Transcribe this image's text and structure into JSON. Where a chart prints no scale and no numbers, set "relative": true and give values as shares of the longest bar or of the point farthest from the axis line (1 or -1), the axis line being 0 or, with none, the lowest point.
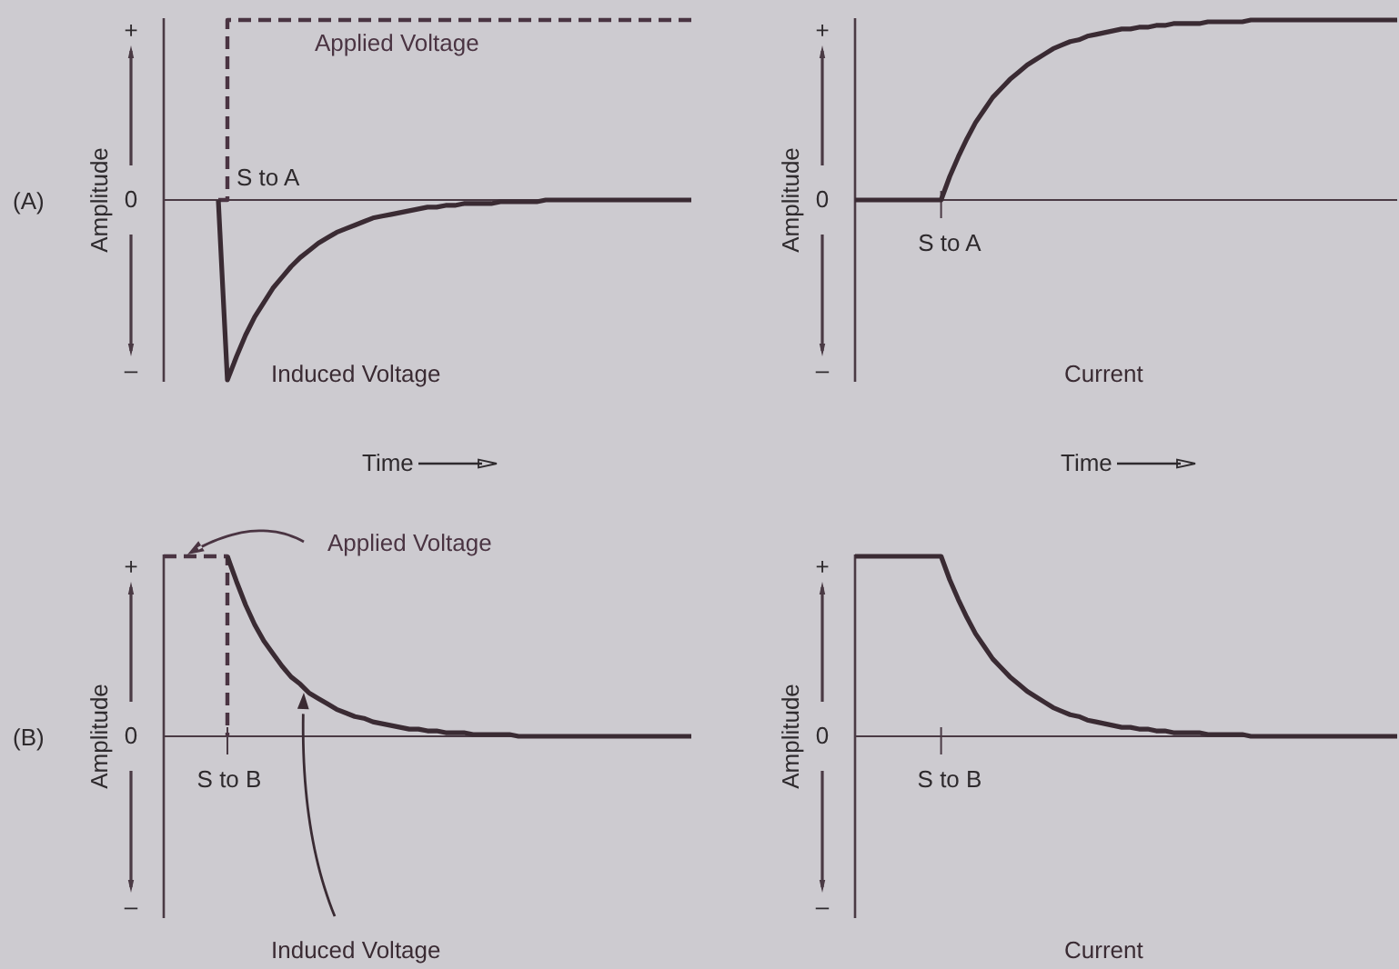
{
  "chart_data": [
    {
      "type": "line",
      "xlabel": "Time",
      "ylabel": "Amplitude",
      "relative": true,
      "annotations": [
        "(A)",
        "S to A",
        "+",
        "0",
        "–"
      ],
      "categories": [
        null,
        null,
        null,
        null,
        null,
        null,
        null,
        null,
        null,
        null,
        null,
        null,
        null,
        null,
        null,
        null,
        null,
        null,
        null,
        null,
        null,
        null,
        null,
        null,
        null,
        null,
        null,
        null,
        null,
        null,
        null,
        null,
        null,
        null,
        null,
        null,
        null,
        null,
        null,
        null,
        null,
        null,
        null,
        null,
        null,
        null,
        null,
        null,
        null,
        null,
        null,
        null,
        null,
        null,
        null,
        null,
        null,
        null,
        null
      ],
      "series": [
        {
          "name": "Applied Voltage",
          "type": "step",
          "line_style": "dashed",
          "color": "#4a3442",
          "values": [
            null,
            null,
            null,
            null,
            null,
            null,
            0,
            1,
            1,
            1,
            1,
            1,
            1,
            1,
            1,
            1,
            1,
            1,
            1,
            1,
            1,
            1,
            1,
            1,
            1,
            1,
            1,
            1,
            1,
            1,
            1,
            1,
            1,
            1,
            1,
            1,
            1,
            1,
            1,
            1,
            1,
            1,
            1,
            1,
            1,
            1,
            1,
            1,
            1,
            1,
            1,
            1,
            1,
            1,
            1,
            1,
            1,
            1,
            1
          ]
        },
        {
          "name": "Induced Voltage",
          "color": "#3a2b33",
          "values": [
            null,
            null,
            null,
            null,
            null,
            null,
            0,
            -1,
            -0.87,
            -0.75,
            -0.65,
            -0.57,
            -0.49,
            -0.43,
            -0.37,
            -0.32,
            -0.28,
            -0.24,
            -0.21,
            -0.18,
            -0.16,
            -0.14,
            -0.12,
            -0.1,
            -0.09,
            -0.08,
            -0.07,
            -0.06,
            -0.05,
            -0.04,
            -0.04,
            -0.03,
            -0.03,
            -0.02,
            -0.02,
            -0.02,
            -0.02,
            -0.01,
            -0.01,
            -0.01,
            -0.01,
            -0.01,
            0,
            0,
            0,
            0,
            0,
            0,
            0,
            0,
            0,
            0,
            0,
            0,
            0,
            0,
            0,
            0,
            0
          ]
        }
      ]
    },
    {
      "type": "line",
      "xlabel": "Time",
      "ylabel": "Amplitude",
      "relative": true,
      "annotations": [
        "S to A",
        "+",
        "0",
        "–"
      ],
      "categories": [
        null,
        null,
        null,
        null,
        null,
        null,
        null,
        null,
        null,
        null,
        null,
        null,
        null,
        null,
        null,
        null,
        null,
        null,
        null,
        null,
        null,
        null,
        null,
        null,
        null,
        null,
        null,
        null,
        null,
        null,
        null,
        null,
        null,
        null,
        null,
        null,
        null,
        null,
        null,
        null,
        null,
        null,
        null,
        null,
        null,
        null,
        null,
        null,
        null,
        null,
        null,
        null,
        null,
        null,
        null,
        null,
        null,
        null,
        null,
        null,
        null,
        null,
        null,
        null
      ],
      "series": [
        {
          "name": "Current",
          "color": "#3a2b33",
          "values": [
            0,
            0,
            0,
            0,
            0,
            0,
            0,
            0,
            0,
            0,
            0,
            0.13,
            0.24,
            0.34,
            0.43,
            0.5,
            0.57,
            0.62,
            0.67,
            0.71,
            0.75,
            0.78,
            0.81,
            0.84,
            0.86,
            0.88,
            0.89,
            0.91,
            0.92,
            0.93,
            0.94,
            0.95,
            0.95,
            0.96,
            0.96,
            0.97,
            0.97,
            0.98,
            0.98,
            0.98,
            0.98,
            0.99,
            0.99,
            0.99,
            0.99,
            0.99,
            1,
            1,
            1,
            1,
            1,
            1,
            1,
            1,
            1,
            1,
            1,
            1,
            1,
            1,
            1,
            1,
            1,
            1
          ]
        }
      ]
    },
    {
      "type": "line",
      "ylabel": "Amplitude",
      "relative": true,
      "annotations": [
        "(B)",
        "S to B",
        "+",
        "0",
        "–"
      ],
      "categories": [
        null,
        null,
        null,
        null,
        null,
        null,
        null,
        null,
        null,
        null,
        null,
        null,
        null,
        null,
        null,
        null,
        null,
        null,
        null,
        null,
        null,
        null,
        null,
        null,
        null,
        null,
        null,
        null,
        null,
        null,
        null,
        null,
        null,
        null,
        null,
        null,
        null,
        null,
        null,
        null,
        null,
        null,
        null,
        null,
        null,
        null,
        null,
        null,
        null,
        null,
        null,
        null,
        null,
        null,
        null,
        null,
        null,
        null,
        null
      ],
      "series": [
        {
          "name": "Applied Voltage",
          "type": "step",
          "line_style": "dashed",
          "color": "#4a3442",
          "values": [
            1,
            1,
            1,
            1,
            1,
            1,
            1,
            0,
            null,
            null,
            null,
            null,
            null,
            null,
            null,
            null,
            null,
            null,
            null,
            null,
            null,
            null,
            null,
            null,
            null,
            null,
            null,
            null,
            null,
            null,
            null,
            null,
            null,
            null,
            null,
            null,
            null,
            null,
            null,
            null,
            null,
            null,
            null,
            null,
            null,
            null,
            null,
            null,
            null,
            null,
            null,
            null,
            null,
            null,
            null,
            null,
            null,
            null,
            null
          ]
        },
        {
          "name": "Induced Voltage",
          "color": "#3a2b33",
          "values": [
            null,
            null,
            null,
            null,
            null,
            null,
            null,
            1,
            0.86,
            0.73,
            0.62,
            0.53,
            0.46,
            0.39,
            0.33,
            0.29,
            0.24,
            0.21,
            0.18,
            0.15,
            0.13,
            0.11,
            0.1,
            0.08,
            0.07,
            0.06,
            0.05,
            0.04,
            0.04,
            0.03,
            0.03,
            0.02,
            0.02,
            0.02,
            0.01,
            0.01,
            0.01,
            0.01,
            0.01,
            0,
            0,
            0,
            0,
            0,
            0,
            0,
            0,
            0,
            0,
            0,
            0,
            0,
            0,
            0,
            0,
            0,
            0,
            0,
            0
          ]
        }
      ]
    },
    {
      "type": "line",
      "ylabel": "Amplitude",
      "relative": true,
      "annotations": [
        "S to B",
        "+",
        "0",
        "–"
      ],
      "categories": [
        null,
        null,
        null,
        null,
        null,
        null,
        null,
        null,
        null,
        null,
        null,
        null,
        null,
        null,
        null,
        null,
        null,
        null,
        null,
        null,
        null,
        null,
        null,
        null,
        null,
        null,
        null,
        null,
        null,
        null,
        null,
        null,
        null,
        null,
        null,
        null,
        null,
        null,
        null,
        null,
        null,
        null,
        null,
        null,
        null,
        null,
        null,
        null,
        null,
        null,
        null,
        null,
        null,
        null,
        null,
        null,
        null,
        null,
        null,
        null,
        null,
        null,
        null,
        null
      ],
      "series": [
        {
          "name": "Current",
          "color": "#3a2b33",
          "values": [
            1,
            1,
            1,
            1,
            1,
            1,
            1,
            1,
            1,
            1,
            1,
            0.87,
            0.76,
            0.66,
            0.57,
            0.5,
            0.43,
            0.38,
            0.33,
            0.29,
            0.25,
            0.22,
            0.19,
            0.16,
            0.14,
            0.12,
            0.11,
            0.09,
            0.08,
            0.07,
            0.06,
            0.05,
            0.05,
            0.04,
            0.04,
            0.03,
            0.03,
            0.02,
            0.02,
            0.02,
            0.02,
            0.01,
            0.01,
            0.01,
            0.01,
            0.01,
            0,
            0,
            0,
            0,
            0,
            0,
            0,
            0,
            0,
            0,
            0,
            0,
            0,
            0,
            0,
            0,
            0,
            0
          ]
        }
      ]
    }
  ]
}
